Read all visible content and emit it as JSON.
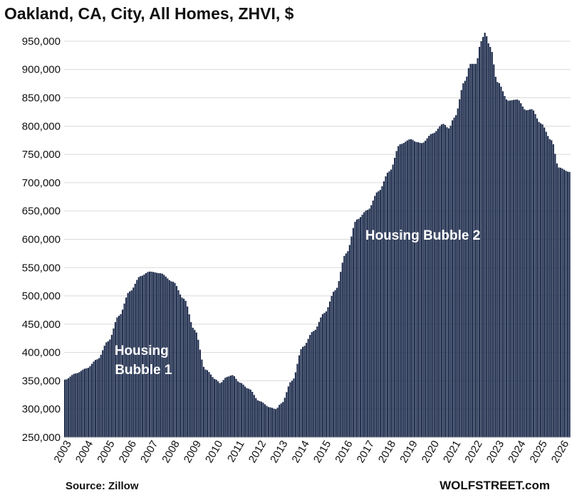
{
  "chart_data": {
    "type": "bar",
    "title": "Oakland, CA, City, All Homes, ZHVI, $",
    "xlabel": "",
    "ylabel": "",
    "ylim": [
      250000,
      960000
    ],
    "yticks": [
      250000,
      300000,
      350000,
      400000,
      450000,
      500000,
      550000,
      600000,
      650000,
      700000,
      750000,
      800000,
      850000,
      900000,
      950000
    ],
    "ytick_labels": [
      "250,000",
      "300,000",
      "350,000",
      "400,000",
      "450,000",
      "500,000",
      "550,000",
      "600,000",
      "650,000",
      "700,000",
      "750,000",
      "800,000",
      "850,000",
      "900,000",
      "950,000"
    ],
    "x_range": [
      "2003-01",
      "2026-05"
    ],
    "xtick_labels": [
      "2003",
      "2004",
      "2005",
      "2006",
      "2007",
      "2008",
      "2009",
      "2010",
      "2011",
      "2012",
      "2013",
      "2014",
      "2015",
      "2016",
      "2017",
      "2018",
      "2019",
      "2020",
      "2021",
      "2022",
      "2023",
      "2024",
      "2025",
      "2026"
    ],
    "frequency": "monthly",
    "grid": true,
    "bar_color": "#1f2d4d",
    "grid_color": "#d9d9d9",
    "series_points": [
      [
        "2003-01",
        352000
      ],
      [
        "2003-07",
        363000
      ],
      [
        "2004-01",
        372000
      ],
      [
        "2004-07",
        388000
      ],
      [
        "2005-01",
        420000
      ],
      [
        "2005-07",
        465000
      ],
      [
        "2006-01",
        508000
      ],
      [
        "2006-07",
        535000
      ],
      [
        "2006-12",
        543000
      ],
      [
        "2007-06",
        540000
      ],
      [
        "2008-01",
        525000
      ],
      [
        "2008-07",
        495000
      ],
      [
        "2009-01",
        440000
      ],
      [
        "2009-07",
        370000
      ],
      [
        "2010-01",
        352000
      ],
      [
        "2010-03",
        346000
      ],
      [
        "2010-07",
        357000
      ],
      [
        "2010-10",
        360000
      ],
      [
        "2011-02",
        347000
      ],
      [
        "2011-07",
        336000
      ],
      [
        "2012-01",
        314000
      ],
      [
        "2012-07",
        303000
      ],
      [
        "2012-10",
        300000
      ],
      [
        "2013-01",
        310000
      ],
      [
        "2013-07",
        350000
      ],
      [
        "2014-01",
        410000
      ],
      [
        "2014-07",
        438000
      ],
      [
        "2015-01",
        470000
      ],
      [
        "2015-07",
        510000
      ],
      [
        "2016-01",
        575000
      ],
      [
        "2016-07",
        635000
      ],
      [
        "2017-01",
        652000
      ],
      [
        "2017-07",
        685000
      ],
      [
        "2018-01",
        720000
      ],
      [
        "2018-07",
        768000
      ],
      [
        "2019-01",
        777000
      ],
      [
        "2019-04",
        772000
      ],
      [
        "2019-07",
        770000
      ],
      [
        "2020-01",
        787000
      ],
      [
        "2020-07",
        804000
      ],
      [
        "2020-10",
        796000
      ],
      [
        "2021-01",
        815000
      ],
      [
        "2021-07",
        880000
      ],
      [
        "2021-10",
        910000
      ],
      [
        "2022-01",
        910000
      ],
      [
        "2022-04",
        950000
      ],
      [
        "2022-06",
        965000
      ],
      [
        "2022-09",
        940000
      ],
      [
        "2023-01",
        878000
      ],
      [
        "2023-07",
        845000
      ],
      [
        "2023-12",
        847000
      ],
      [
        "2024-05",
        828000
      ],
      [
        "2024-08",
        830000
      ],
      [
        "2025-01",
        805000
      ],
      [
        "2025-07",
        775000
      ],
      [
        "2025-11",
        727000
      ],
      [
        "2026-05",
        719000
      ]
    ],
    "annotations": [
      {
        "text_lines": [
          "Housing",
          "Bubble 1"
        ],
        "anchor": "2006-09"
      },
      {
        "text_lines": [
          "Housing Bubble 2"
        ],
        "anchor": "2019-08"
      }
    ]
  },
  "footer": {
    "source": "Source: Zillow",
    "credit": "WOLFSTREET.com"
  }
}
